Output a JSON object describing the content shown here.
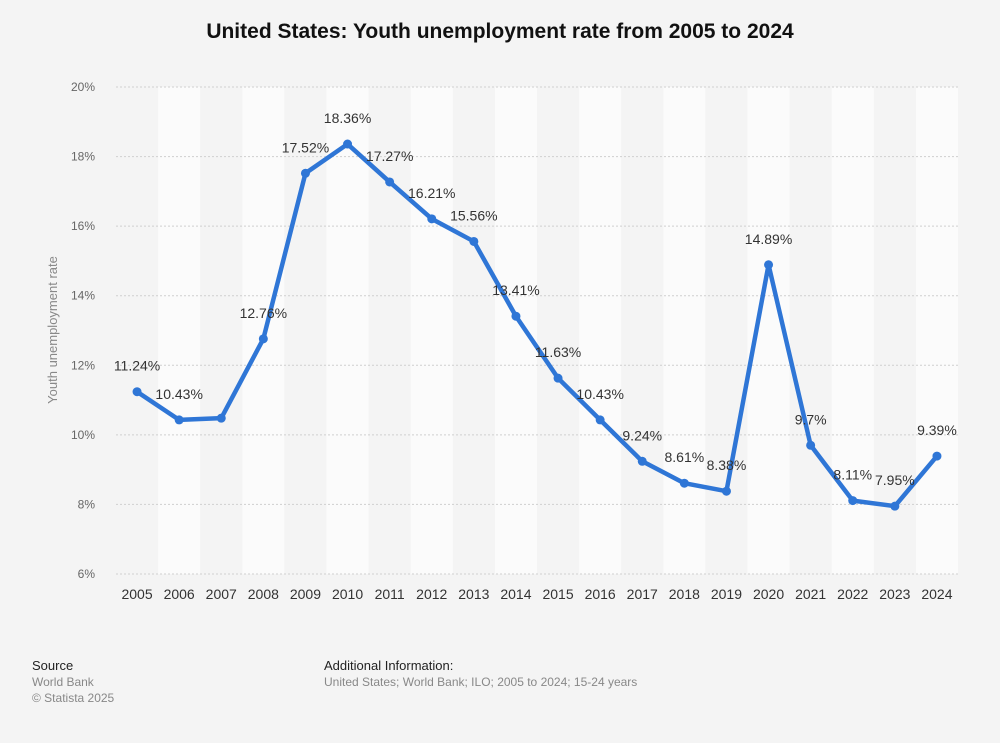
{
  "chart_data": {
    "type": "line",
    "title": "United States: Youth unemployment rate from 2005 to 2024",
    "ylabel": "Youth unemployment rate",
    "xlabel": "",
    "ylim": [
      6,
      20
    ],
    "y_ticks": [
      "6%",
      "8%",
      "10%",
      "12%",
      "14%",
      "16%",
      "18%",
      "20%"
    ],
    "categories": [
      "2005",
      "2006",
      "2007",
      "2008",
      "2009",
      "2010",
      "2011",
      "2012",
      "2013",
      "2014",
      "2015",
      "2016",
      "2017",
      "2018",
      "2019",
      "2020",
      "2021",
      "2022",
      "2023",
      "2024"
    ],
    "values": [
      11.24,
      10.43,
      10.48,
      12.76,
      17.52,
      18.36,
      17.27,
      16.21,
      15.56,
      13.41,
      11.63,
      10.43,
      9.24,
      8.61,
      8.38,
      14.89,
      9.7,
      8.11,
      7.95,
      9.39
    ],
    "labels": [
      "11.24%",
      "10.43%",
      "",
      "12.76%",
      "17.52%",
      "18.36%",
      "17.27%",
      "16.21%",
      "15.56%",
      "13.41%",
      "11.63%",
      "10.43%",
      "9.24%",
      "8.61%",
      "8.38%",
      "14.89%",
      "9.7%",
      "8.11%",
      "7.95%",
      "9.39%"
    ],
    "grid": true,
    "line_color": "#2f76d6"
  },
  "footer": {
    "source_heading": "Source",
    "source_lines": [
      "World Bank",
      "© Statista 2025"
    ],
    "info_heading": "Additional Information:",
    "info_text": "United States; World Bank; ILO; 2005 to 2024; 15-24 years"
  }
}
